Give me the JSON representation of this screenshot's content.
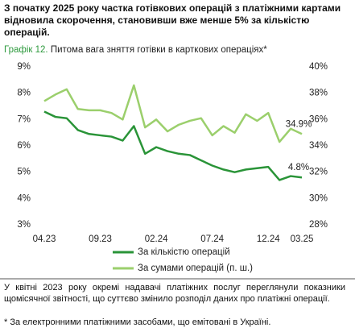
{
  "header": "З початку 2025 року частка готівкових операцій з платіжними картами відновила скорочення, становивши вже менше 5% за кількістю операцій.",
  "chart_data": {
    "type": "line",
    "figure_label": "Графік 12.",
    "title": "Питома вага зняття готівки в карткових операціях*",
    "categories": [
      "04.23",
      null,
      null,
      null,
      null,
      "09.23",
      null,
      null,
      null,
      null,
      "02.24",
      null,
      null,
      null,
      null,
      "07.24",
      null,
      null,
      null,
      null,
      "12.24",
      null,
      null,
      "03.25"
    ],
    "series": [
      {
        "name": "За кількістю операцій",
        "color": "#2a9438",
        "values": [
          7.3,
          7.1,
          7.05,
          6.6,
          6.45,
          6.4,
          6.35,
          6.2,
          6.75,
          5.7,
          5.95,
          5.8,
          5.7,
          5.65,
          5.45,
          5.25,
          5.1,
          5.0,
          5.1,
          5.15,
          5.2,
          4.7,
          4.85,
          4.8
        ],
        "value_labels": [
          null,
          null,
          null,
          null,
          null,
          null,
          null,
          null,
          null,
          null,
          null,
          null,
          null,
          null,
          null,
          null,
          null,
          null,
          null,
          null,
          null,
          null,
          null,
          "4.8%"
        ]
      },
      {
        "name": "За сумами операцій (п. ш.)",
        "color": "#9bcf6c",
        "axis": "y2",
        "values": [
          37.4,
          37.9,
          38.3,
          36.8,
          36.7,
          36.7,
          36.5,
          36.0,
          38.6,
          35.4,
          36.0,
          35.1,
          35.6,
          35.9,
          36.1,
          34.8,
          35.5,
          35.0,
          36.4,
          35.9,
          36.5,
          34.3,
          35.3,
          34.9
        ],
        "value_labels": [
          null,
          null,
          null,
          null,
          null,
          null,
          null,
          null,
          null,
          null,
          null,
          null,
          null,
          null,
          null,
          null,
          null,
          null,
          null,
          null,
          null,
          null,
          null,
          "34.9%"
        ]
      }
    ],
    "ylim": [
      3,
      9
    ],
    "yticks": [
      {
        "value": 3,
        "label": "3%"
      },
      {
        "value": 4,
        "label": "4%"
      },
      {
        "value": 5,
        "label": "5%"
      },
      {
        "value": 6,
        "label": "6%"
      },
      {
        "value": 7,
        "label": "7%"
      },
      {
        "value": 8,
        "label": "8%"
      },
      {
        "value": 9,
        "label": "9%"
      }
    ],
    "y2lim": [
      28,
      40
    ],
    "y2ticks": [
      {
        "value": 28,
        "label": "28%"
      },
      {
        "value": 30,
        "label": "30%"
      },
      {
        "value": 32,
        "label": "32%"
      },
      {
        "value": 34,
        "label": "34%"
      },
      {
        "value": 36,
        "label": "36%"
      },
      {
        "value": 38,
        "label": "38%"
      },
      {
        "value": 40,
        "label": "40%"
      }
    ],
    "legend": "bottom"
  },
  "footer": {
    "text": "У квітні 2023 року окремі надавачі платіжних послуг переглянули показники щомісячної звітності, що суттєво змінило розподіл даних про платіжні операції.",
    "note": "* За електронними платіжними засобами, що емітовані в Україні."
  }
}
